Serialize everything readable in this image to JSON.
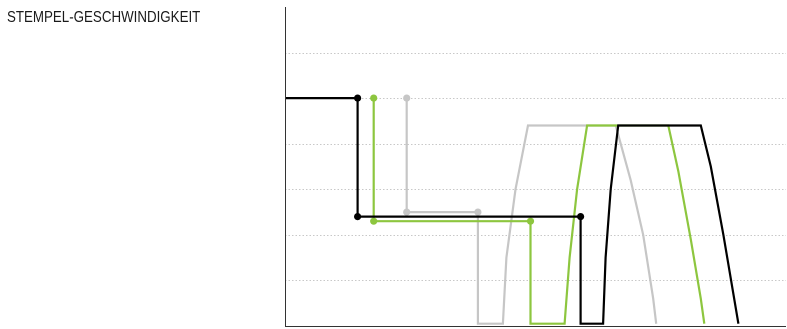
{
  "title": "STEMPEL-GESCHWINDIGKEIT",
  "colors": {
    "background": "#ffffff",
    "axis": "#333333",
    "grid": "#c8c8c8",
    "series_colors": [
      "#000000",
      "#8dc63f",
      "#c6c6c6"
    ]
  },
  "chart_data": {
    "type": "line",
    "title": "STEMPEL-GESCHWINDIGKEIT",
    "xlabel": "",
    "ylabel": "",
    "xlim": [
      0,
      100
    ],
    "ylim": [
      0,
      7
    ],
    "grid": true,
    "grid_y": [
      1,
      2,
      3,
      4,
      5,
      6
    ],
    "legend": "none",
    "series": [
      {
        "color": "#000000",
        "points": [
          [
            0,
            5
          ],
          [
            14.5,
            5
          ],
          [
            14.5,
            2.4
          ],
          [
            59.0,
            2.4
          ],
          [
            59.0,
            0.05
          ],
          [
            63.5,
            0.05
          ],
          [
            64.0,
            1.5
          ],
          [
            65.0,
            3.0
          ],
          [
            66.5,
            4.4
          ],
          [
            83.0,
            4.4
          ],
          [
            85.0,
            3.5
          ],
          [
            87.5,
            2.0
          ],
          [
            89.5,
            0.7
          ],
          [
            90.5,
            0.05
          ]
        ],
        "markers": [
          [
            14.5,
            5
          ],
          [
            14.5,
            2.4
          ],
          [
            59.0,
            2.4
          ]
        ]
      },
      {
        "color": "#8dc63f",
        "points": [
          [
            17.7,
            5
          ],
          [
            17.7,
            2.3
          ],
          [
            49.0,
            2.3
          ],
          [
            49.0,
            0.05
          ],
          [
            55.8,
            0.05
          ],
          [
            56.8,
            1.5
          ],
          [
            58.3,
            3.0
          ],
          [
            60.3,
            4.4
          ],
          [
            76.5,
            4.4
          ],
          [
            78.5,
            3.4
          ],
          [
            81.0,
            1.9
          ],
          [
            83.0,
            0.6
          ],
          [
            83.7,
            0.05
          ]
        ],
        "markers": [
          [
            17.7,
            5
          ],
          [
            17.7,
            2.3
          ],
          [
            49.0,
            2.3
          ]
        ]
      },
      {
        "color": "#c6c6c6",
        "points": [
          [
            24.3,
            5
          ],
          [
            24.3,
            2.5
          ],
          [
            38.5,
            2.5
          ],
          [
            38.5,
            0.05
          ],
          [
            43.5,
            0.05
          ],
          [
            44.2,
            1.5
          ],
          [
            46.0,
            3.0
          ],
          [
            48.5,
            4.4
          ],
          [
            66.0,
            4.4
          ],
          [
            69.0,
            3.2
          ],
          [
            71.5,
            2.0
          ],
          [
            73.5,
            0.6
          ],
          [
            74.1,
            0.05
          ]
        ],
        "markers": [
          [
            24.3,
            5
          ],
          [
            24.3,
            2.5
          ],
          [
            38.5,
            2.5
          ]
        ]
      }
    ]
  }
}
